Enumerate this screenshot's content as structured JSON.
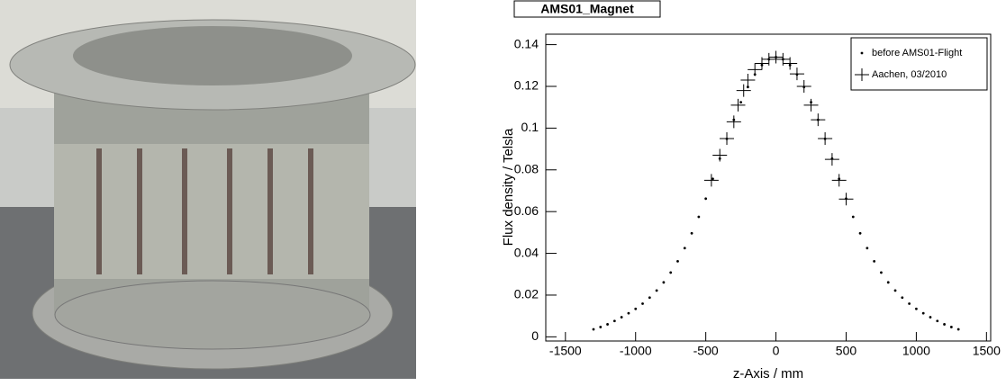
{
  "chart_data": {
    "type": "scatter",
    "title": "AMS01_Magnet",
    "x_label": "z-Axis / mm",
    "y_label": "Flux density / Telsla",
    "xlim": [
      -1640,
      1530
    ],
    "ylim": [
      -0.002,
      0.145
    ],
    "xticks": [
      -1500,
      -1000,
      -500,
      0,
      500,
      1000,
      1500
    ],
    "yticks": [
      0,
      0.02,
      0.04,
      0.06,
      0.08,
      0.1,
      0.12,
      0.14
    ],
    "legend": "upper right",
    "series": [
      {
        "name": "before AMS01-Flight",
        "color": "#000000",
        "marker": "dot",
        "x": [
          -1300,
          -1250,
          -1200,
          -1150,
          -1100,
          -1050,
          -1000,
          -950,
          -900,
          -850,
          -800,
          -750,
          -700,
          -650,
          -600,
          -550,
          -500,
          -450,
          -400,
          -350,
          -300,
          -250,
          -200,
          -150,
          -100,
          -50,
          0,
          50,
          100,
          150,
          200,
          250,
          300,
          350,
          400,
          450,
          500,
          550,
          600,
          650,
          700,
          750,
          800,
          850,
          900,
          950,
          1000,
          1050,
          1100,
          1150,
          1200,
          1250,
          1300
        ],
        "values": [
          0.0036,
          0.0047,
          0.006,
          0.0076,
          0.0094,
          0.0113,
          0.0134,
          0.0159,
          0.0188,
          0.0222,
          0.0261,
          0.0308,
          0.0362,
          0.0425,
          0.0496,
          0.0575,
          0.0662,
          0.0757,
          0.0854,
          0.0949,
          0.104,
          0.1124,
          0.1197,
          0.1257,
          0.1302,
          0.133,
          0.134,
          0.133,
          0.1302,
          0.1257,
          0.1197,
          0.1124,
          0.104,
          0.0949,
          0.0854,
          0.0757,
          0.0662,
          0.0575,
          0.0496,
          0.0425,
          0.0362,
          0.0308,
          0.0261,
          0.0222,
          0.0188,
          0.0159,
          0.0134,
          0.0113,
          0.0094,
          0.0076,
          0.006,
          0.0047,
          0.0036
        ]
      },
      {
        "name": "Aachen, 03/2010",
        "color": "#000000",
        "marker": "cross",
        "x": [
          -460,
          -400,
          -350,
          -300,
          -270,
          -230,
          -200,
          -150,
          -100,
          -50,
          0,
          50,
          100,
          150,
          200,
          250,
          300,
          350,
          400,
          450,
          500
        ],
        "values": [
          0.075,
          0.087,
          0.095,
          0.103,
          0.111,
          0.118,
          0.123,
          0.128,
          0.131,
          0.133,
          0.134,
          0.133,
          0.131,
          0.126,
          0.12,
          0.111,
          0.104,
          0.095,
          0.085,
          0.075,
          0.066
        ]
      }
    ]
  }
}
